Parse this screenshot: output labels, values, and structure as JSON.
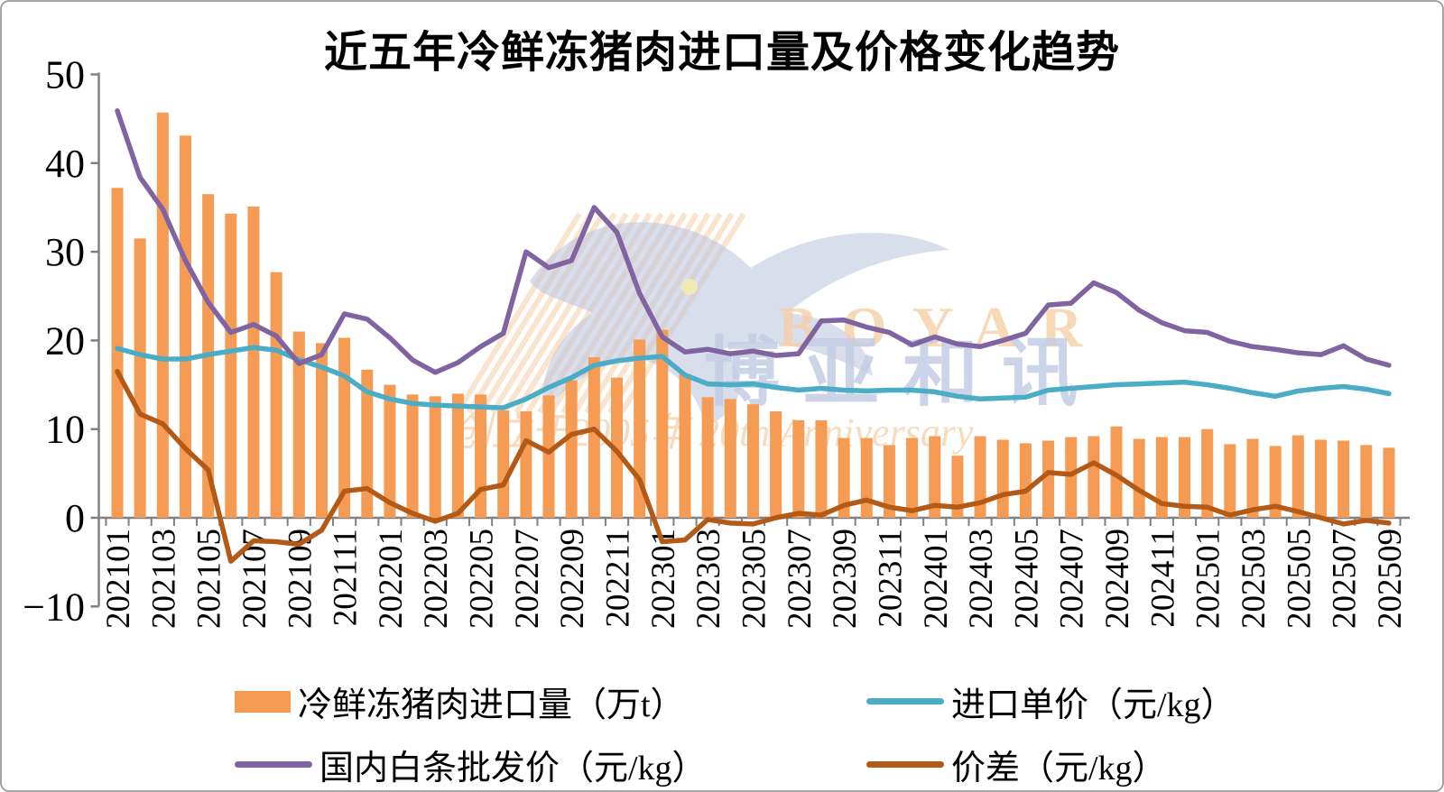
{
  "title": "近五年冷鲜冻猪肉进口量及价格变化趋势",
  "colors": {
    "bar": "#F59B53",
    "import_price": "#4BACC6",
    "wholesale_price": "#8064A2",
    "spread": "#B45A17",
    "axis": "#808080",
    "text": "#000000"
  },
  "legend": {
    "items": [
      {
        "label": "冷鲜冻猪肉进口量（万t）",
        "type": "bar",
        "color": "#F59B53"
      },
      {
        "label": "进口单价（元/kg）",
        "type": "line",
        "color": "#4BACC6"
      },
      {
        "label": "国内白条批发价（元/kg）",
        "type": "line",
        "color": "#8064A2"
      },
      {
        "label": "价差（元/kg）",
        "type": "line",
        "color": "#B45A17"
      }
    ]
  },
  "watermark": {
    "brand_latin": "BOYAR",
    "brand_cjk": "博亚和讯",
    "slogan_cjk": "创立于2005年",
    "slogan_latin": "20th Anniversary"
  },
  "chart_data": {
    "type": "combo-bar-line",
    "title": "近五年冷鲜冻猪肉进口量及价格变化趋势",
    "xlabel": "",
    "ylabel": "",
    "ylim": [
      -10,
      50
    ],
    "y_ticks": [
      50,
      40,
      30,
      20,
      10,
      0,
      -10
    ],
    "grid": false,
    "legend_position": "bottom",
    "x_label_step": 2,
    "categories": [
      "202101",
      "202102",
      "202103",
      "202104",
      "202105",
      "202106",
      "202107",
      "202108",
      "202109",
      "202110",
      "202111",
      "202112",
      "202201",
      "202202",
      "202203",
      "202204",
      "202205",
      "202206",
      "202207",
      "202208",
      "202209",
      "202210",
      "202211",
      "202212",
      "202301",
      "202302",
      "202303",
      "202304",
      "202305",
      "202306",
      "202307",
      "202308",
      "202309",
      "202310",
      "202311",
      "202312",
      "202401",
      "202402",
      "202403",
      "202404",
      "202405",
      "202406",
      "202407",
      "202408",
      "202409",
      "202410",
      "202411",
      "202412",
      "202501",
      "202502",
      "202503",
      "202504",
      "202505",
      "202506",
      "202507",
      "202508",
      "202509"
    ],
    "series": [
      {
        "name": "冷鲜冻猪肉进口量（万t）",
        "type": "bar",
        "color": "#F59B53",
        "values": [
          37.2,
          31.5,
          45.7,
          43.1,
          36.5,
          34.3,
          35.1,
          27.7,
          21.0,
          19.7,
          20.3,
          16.7,
          15.0,
          13.9,
          13.7,
          14.0,
          13.9,
          12.1,
          12.0,
          13.8,
          15.5,
          18.1,
          15.8,
          20.1,
          21.2,
          16.2,
          13.6,
          13.4,
          12.8,
          12.0,
          11.0,
          11.0,
          9.0,
          9.0,
          8.2,
          9.0,
          9.2,
          7.0,
          9.2,
          8.8,
          8.4,
          8.7,
          9.1,
          9.2,
          10.3,
          8.9,
          9.1,
          9.1,
          10.0,
          8.3,
          8.9,
          8.1,
          9.3,
          8.8,
          8.7,
          8.2,
          7.9
        ]
      },
      {
        "name": "进口单价（元/kg）",
        "type": "line",
        "color": "#4BACC6",
        "values": [
          19.1,
          18.4,
          17.9,
          17.9,
          18.4,
          18.8,
          19.2,
          18.9,
          17.8,
          17.0,
          16.0,
          14.2,
          13.4,
          12.9,
          12.7,
          12.6,
          12.5,
          12.4,
          13.4,
          14.7,
          15.8,
          17.2,
          17.7,
          18.0,
          18.2,
          16.1,
          15.1,
          15.0,
          15.1,
          14.7,
          14.4,
          14.6,
          14.4,
          14.3,
          14.4,
          14.4,
          14.2,
          13.7,
          13.4,
          13.5,
          13.6,
          14.4,
          14.6,
          14.8,
          15.0,
          15.1,
          15.2,
          15.3,
          15.0,
          14.6,
          14.1,
          13.7,
          14.3,
          14.6,
          14.8,
          14.5,
          14.0
        ]
      },
      {
        "name": "国内白条批发价（元/kg）",
        "type": "line",
        "color": "#8064A2",
        "values": [
          45.9,
          38.4,
          34.8,
          29.0,
          24.3,
          20.9,
          21.8,
          20.5,
          17.4,
          18.4,
          23.0,
          22.4,
          20.3,
          17.8,
          16.4,
          17.5,
          19.3,
          20.8,
          30.0,
          28.2,
          29.0,
          35.0,
          32.2,
          25.3,
          20.4,
          18.7,
          19.0,
          18.5,
          18.8,
          18.3,
          18.5,
          22.2,
          22.3,
          21.5,
          20.9,
          19.5,
          20.4,
          19.6,
          19.3,
          20.0,
          20.8,
          24.0,
          24.2,
          26.5,
          25.4,
          23.4,
          22.0,
          21.1,
          20.9,
          19.9,
          19.3,
          19.0,
          18.6,
          18.4,
          19.4,
          17.9,
          17.2
        ]
      },
      {
        "name": "价差（元/kg）",
        "type": "line",
        "color": "#B45A17",
        "values": [
          16.5,
          11.7,
          10.6,
          7.8,
          5.4,
          -4.9,
          -2.6,
          -2.7,
          -3.0,
          -1.4,
          3.0,
          3.3,
          1.7,
          0.5,
          -0.4,
          0.5,
          3.2,
          3.7,
          8.7,
          7.4,
          9.4,
          10.0,
          7.5,
          4.3,
          -2.7,
          -2.5,
          -0.2,
          -0.6,
          -0.7,
          0.0,
          0.5,
          0.3,
          1.4,
          2.0,
          1.2,
          0.8,
          1.4,
          1.2,
          1.7,
          2.6,
          3.0,
          5.1,
          4.9,
          6.2,
          4.8,
          3.1,
          1.6,
          1.3,
          1.2,
          0.3,
          0.9,
          1.3,
          0.7,
          0.0,
          -0.7,
          -0.3,
          -0.6
        ]
      }
    ]
  }
}
